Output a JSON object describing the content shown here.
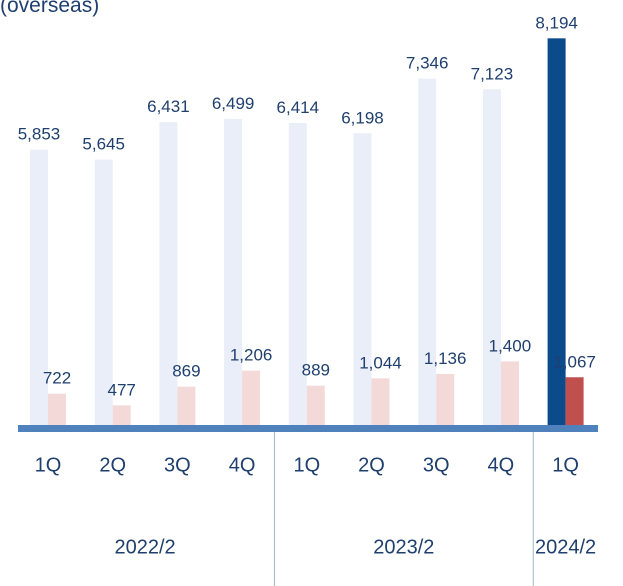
{
  "chart_data": {
    "type": "bar",
    "title": "(overseas)",
    "categories": [
      "1Q",
      "2Q",
      "3Q",
      "4Q",
      "1Q",
      "2Q",
      "3Q",
      "4Q",
      "1Q"
    ],
    "x_groups": [
      {
        "label": "2022/2",
        "span": 4
      },
      {
        "label": "2023/2",
        "span": 4
      },
      {
        "label": "2024/2",
        "span": 1
      }
    ],
    "series": [
      {
        "values": [
          5853,
          5645,
          6431,
          6499,
          6414,
          6198,
          7346,
          7123,
          8194
        ],
        "value_labels": [
          "5,853",
          "5,645",
          "6,431",
          "6,499",
          "6,414",
          "6,198",
          "7,346",
          "7,123",
          "8,194"
        ],
        "colors": [
          "#e9eef8",
          "#e9eef8",
          "#e9eef8",
          "#e9eef8",
          "#e9eef8",
          "#e9eef8",
          "#e9eef8",
          "#e9eef8",
          "#0b4a8b"
        ]
      },
      {
        "values": [
          722,
          477,
          869,
          1206,
          889,
          1044,
          1136,
          1400,
          1067
        ],
        "value_labels": [
          "722",
          "477",
          "869",
          "1,206",
          "889",
          "1,044",
          "1,136",
          "1,400",
          "1,067"
        ],
        "colors": [
          "#f4d9d9",
          "#f4d9d9",
          "#f4d9d9",
          "#f4d9d9",
          "#f4d9d9",
          "#f4d9d9",
          "#f4d9d9",
          "#f4d9d9",
          "#c0504d"
        ]
      }
    ],
    "ylim": [
      0,
      9000
    ]
  }
}
